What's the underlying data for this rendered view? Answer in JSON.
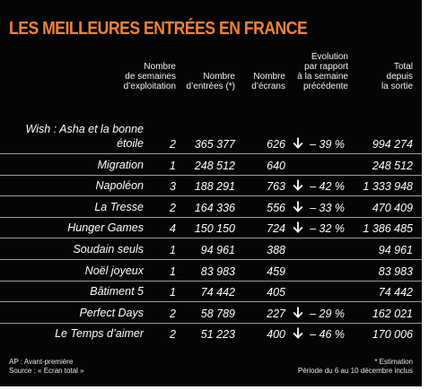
{
  "title": "LES MEILLEURES ENTRÉES EN FRANCE",
  "headers": {
    "weeks": "Nombre\nde semaines\nd’exploitation",
    "entries": "Nombre\nd’entrées (*)",
    "screens": "Nombre\nd’écrans",
    "evolution": "Evolution\npar rapport\nà la semaine\nprécédente",
    "total": "Total\ndepuis\nla sortie"
  },
  "rows": [
    {
      "title": "Wish : Asha et la bonne étoile",
      "weeks": "2",
      "entries": "365 377",
      "screens": "626",
      "down": true,
      "evolution": "– 39 %",
      "total": "994 274"
    },
    {
      "title": "Migration",
      "weeks": "1",
      "entries": "248 512",
      "screens": "640",
      "down": false,
      "evolution": "",
      "total": "248 512"
    },
    {
      "title": "Napoléon",
      "weeks": "3",
      "entries": "188 291",
      "screens": "763",
      "down": true,
      "evolution": "– 42 %",
      "total": "1 333 948"
    },
    {
      "title": "La Tresse",
      "weeks": "2",
      "entries": "164 336",
      "screens": "556",
      "down": true,
      "evolution": "– 33 %",
      "total": "470 409"
    },
    {
      "title": "Hunger Games",
      "weeks": "4",
      "entries": "150 150",
      "screens": "724",
      "down": true,
      "evolution": "– 32 %",
      "total": "1 386 485"
    },
    {
      "title": "Soudain seuls",
      "weeks": "1",
      "entries": "94 961",
      "screens": "388",
      "down": false,
      "evolution": "",
      "total": "94 961"
    },
    {
      "title": "Noël joyeux",
      "weeks": "1",
      "entries": "83 983",
      "screens": "459",
      "down": false,
      "evolution": "",
      "total": "83 983"
    },
    {
      "title": "Bâtiment 5",
      "weeks": "1",
      "entries": "74 442",
      "screens": "405",
      "down": false,
      "evolution": "",
      "total": "74 442"
    },
    {
      "title": "Perfect Days",
      "weeks": "2",
      "entries": "58 789",
      "screens": "227",
      "down": true,
      "evolution": "– 29 %",
      "total": "162 021"
    },
    {
      "title": "Le Temps d’aimer",
      "weeks": "2",
      "entries": "51 223",
      "screens": "400",
      "down": true,
      "evolution": "– 46 %",
      "total": "170 006"
    }
  ],
  "footer": {
    "ap_note": "AP : Avant-première",
    "source": "Source : « Ecran total »",
    "estimation": "* Estimation",
    "period": "Période du 6 au 10 décembre inclus"
  },
  "colors": {
    "title": "#f0823a",
    "background": "#050505",
    "text": "#ffffff"
  }
}
